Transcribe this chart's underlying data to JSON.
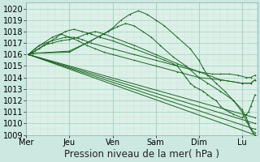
{
  "xlabel": "Pression niveau de la mer( hPa )",
  "background_color": "#cce8e0",
  "plot_bg_color": "#ddf0e8",
  "grid_color_major": "#aad4c8",
  "grid_color_minor": "#c0e4d8",
  "line_color": "#1a6620",
  "ylim": [
    1009,
    1020.5
  ],
  "xlim": [
    0,
    5.35
  ],
  "yticks": [
    1009,
    1010,
    1011,
    1012,
    1013,
    1014,
    1015,
    1016,
    1017,
    1018,
    1019,
    1020
  ],
  "xtick_labels": [
    "Mer",
    "Jeu",
    "Ven",
    "Sam",
    "Dim",
    "Lu"
  ],
  "xtick_positions": [
    0.0,
    1.0,
    2.0,
    3.0,
    4.0,
    5.0
  ],
  "series": [
    {
      "x": [
        0.05,
        0.15,
        1.0,
        1.5,
        1.8,
        2.0,
        2.2,
        2.4,
        2.6,
        2.8,
        3.0,
        3.2,
        3.5,
        3.8,
        4.0,
        4.1,
        4.2,
        4.4,
        4.6,
        4.8,
        5.0,
        5.1,
        5.15,
        5.2,
        5.25,
        5.3
      ],
      "y": [
        1016.0,
        1016.1,
        1016.3,
        1017.2,
        1017.8,
        1018.3,
        1019.0,
        1019.5,
        1019.8,
        1019.5,
        1019.0,
        1018.5,
        1017.5,
        1016.5,
        1015.5,
        1014.8,
        1014.2,
        1013.5,
        1012.8,
        1012.0,
        1011.2,
        1010.5,
        1010.0,
        1009.5,
        1009.2,
        1009.0
      ]
    },
    {
      "x": [
        0.05,
        0.15,
        1.0,
        1.4,
        1.7,
        1.9,
        2.1,
        2.3,
        2.5,
        2.7,
        2.9,
        3.1,
        3.4,
        3.7,
        4.0,
        4.2,
        4.5,
        4.8,
        5.0,
        5.1,
        5.2,
        5.3
      ],
      "y": [
        1016.0,
        1016.1,
        1016.2,
        1017.0,
        1017.6,
        1018.0,
        1018.4,
        1018.7,
        1018.5,
        1018.0,
        1017.5,
        1016.8,
        1015.8,
        1015.0,
        1014.0,
        1013.5,
        1012.8,
        1012.0,
        1011.0,
        1010.2,
        1009.5,
        1009.2
      ]
    },
    {
      "x": [
        0.05,
        5.3
      ],
      "y": [
        1016.0,
        1009.0
      ]
    },
    {
      "x": [
        0.05,
        5.3
      ],
      "y": [
        1016.0,
        1009.5
      ]
    },
    {
      "x": [
        0.05,
        5.3
      ],
      "y": [
        1016.0,
        1010.0
      ]
    },
    {
      "x": [
        0.05,
        5.3
      ],
      "y": [
        1016.0,
        1010.5
      ]
    },
    {
      "x": [
        0.05,
        0.2,
        0.4,
        0.6,
        0.8,
        1.0,
        1.2,
        1.4,
        1.6,
        1.8,
        2.0,
        2.5,
        3.0,
        3.5,
        4.0,
        4.5,
        5.0,
        5.2,
        5.3
      ],
      "y": [
        1016.0,
        1016.3,
        1016.8,
        1017.0,
        1017.2,
        1017.3,
        1017.5,
        1017.8,
        1018.0,
        1017.8,
        1017.5,
        1016.8,
        1016.0,
        1015.2,
        1014.5,
        1013.8,
        1013.5,
        1013.5,
        1013.8
      ]
    },
    {
      "x": [
        0.05,
        0.2,
        0.4,
        0.6,
        0.8,
        1.0,
        1.2,
        1.4,
        1.6,
        1.8,
        2.0,
        2.5,
        3.0,
        3.5,
        4.0,
        4.5,
        5.0,
        5.2,
        5.3
      ],
      "y": [
        1016.0,
        1016.5,
        1017.0,
        1017.5,
        1017.8,
        1017.5,
        1017.2,
        1016.8,
        1016.5,
        1016.2,
        1016.0,
        1015.5,
        1015.0,
        1014.5,
        1014.0,
        1013.8,
        1013.5,
        1013.5,
        1013.8
      ]
    },
    {
      "x": [
        0.05,
        0.3,
        0.6,
        0.9,
        1.1,
        1.3,
        1.5,
        2.0,
        2.5,
        3.0,
        3.5,
        4.0,
        4.3,
        4.5,
        4.7,
        4.9,
        5.1,
        5.2,
        5.3
      ],
      "y": [
        1016.0,
        1016.8,
        1017.2,
        1017.5,
        1017.5,
        1017.3,
        1017.0,
        1016.5,
        1016.0,
        1015.5,
        1015.0,
        1014.5,
        1014.3,
        1014.3,
        1014.3,
        1014.2,
        1014.0,
        1014.0,
        1014.2
      ]
    },
    {
      "x": [
        0.05,
        0.15,
        0.3,
        0.5,
        0.7,
        0.9,
        1.1,
        1.3,
        1.5,
        1.7,
        2.0,
        2.5,
        3.0,
        3.2,
        3.4,
        3.5,
        3.6,
        3.7,
        3.8,
        3.9,
        4.0,
        4.1,
        4.2,
        4.3,
        4.4,
        4.5,
        4.6,
        4.7,
        4.8,
        5.0,
        5.1,
        5.15,
        5.2,
        5.25,
        5.3
      ],
      "y": [
        1016.0,
        1016.2,
        1016.5,
        1017.0,
        1017.5,
        1018.0,
        1018.2,
        1018.0,
        1017.8,
        1017.5,
        1017.2,
        1016.5,
        1015.8,
        1015.5,
        1015.2,
        1015.0,
        1014.5,
        1014.0,
        1013.5,
        1013.2,
        1013.0,
        1012.8,
        1012.5,
        1012.2,
        1012.0,
        1011.5,
        1011.2,
        1011.0,
        1010.8,
        1010.5,
        1010.8,
        1011.0,
        1011.5,
        1012.0,
        1012.5
      ]
    }
  ],
  "linewidth": 0.7,
  "xlabel_fontsize": 8.5,
  "tick_fontsize": 7
}
